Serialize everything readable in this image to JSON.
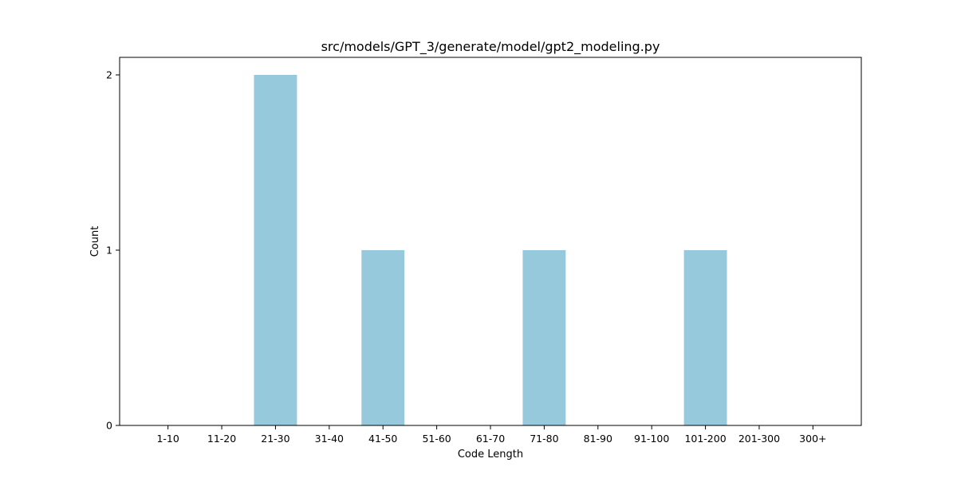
{
  "chart_data": {
    "type": "bar",
    "title": "src/models/GPT_3/generate/model/gpt2_modeling.py",
    "xlabel": "Code Length",
    "ylabel": "Count",
    "categories": [
      "1-10",
      "11-20",
      "21-30",
      "31-40",
      "41-50",
      "51-60",
      "61-70",
      "71-80",
      "81-90",
      "91-100",
      "101-200",
      "201-300",
      "300+"
    ],
    "values": [
      0,
      0,
      2,
      0,
      1,
      0,
      0,
      1,
      0,
      0,
      1,
      0,
      0
    ],
    "ylim": [
      0,
      2.1
    ],
    "yticks": [
      0,
      1,
      2
    ],
    "bar_color": "#96c9dc",
    "grid": false,
    "legend": "none"
  }
}
